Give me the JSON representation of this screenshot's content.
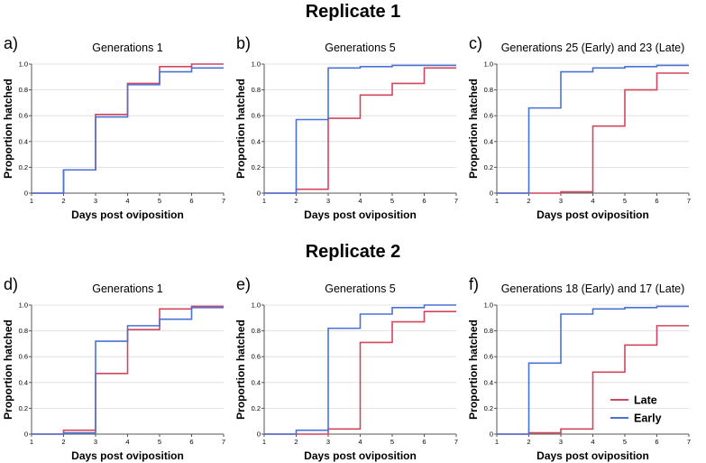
{
  "replicates": [
    {
      "title": "Replicate 1"
    },
    {
      "title": "Replicate 2"
    }
  ],
  "legend": {
    "position": "lower-right of panel f",
    "entries": [
      {
        "name": "Late",
        "color": "#d0475e"
      },
      {
        "name": "Early",
        "color": "#4a72d6"
      }
    ]
  },
  "chart_data": [
    {
      "type": "line",
      "step": true,
      "panel_label": "a)",
      "title": "Generations 1",
      "xlabel": "Days post oviposition",
      "ylabel": "Proportion hatched",
      "xlim": [
        1,
        7
      ],
      "ylim": [
        0,
        1.0
      ],
      "x_ticks": [
        "1",
        "2",
        "3",
        "4",
        "5",
        "6",
        "7"
      ],
      "y_ticks": [
        "0",
        "0.2",
        "0.4",
        "0.6",
        "0.8",
        "1.0"
      ],
      "x": [
        1,
        2,
        3,
        4,
        5,
        6,
        7
      ],
      "series": [
        {
          "name": "Late",
          "color": "#d0475e",
          "values": [
            0,
            0.18,
            0.61,
            0.85,
            0.98,
            1.0,
            1.0
          ]
        },
        {
          "name": "Early",
          "color": "#4a72d6",
          "values": [
            0,
            0.18,
            0.59,
            0.84,
            0.94,
            0.97,
            0.97
          ]
        }
      ]
    },
    {
      "type": "line",
      "step": true,
      "panel_label": "b)",
      "title": "Generations 5",
      "xlabel": "Days post oviposition",
      "ylabel": "Proportion hatched",
      "xlim": [
        1,
        7
      ],
      "ylim": [
        0,
        1.0
      ],
      "x_ticks": [
        "1",
        "2",
        "3",
        "4",
        "5",
        "6",
        "7"
      ],
      "y_ticks": [
        "0",
        "0.2",
        "0.4",
        "0.6",
        "0.8",
        "1.0"
      ],
      "x": [
        1,
        2,
        3,
        4,
        5,
        6,
        7
      ],
      "series": [
        {
          "name": "Late",
          "color": "#d0475e",
          "values": [
            0,
            0.03,
            0.58,
            0.76,
            0.85,
            0.97,
            0.97
          ]
        },
        {
          "name": "Early",
          "color": "#4a72d6",
          "values": [
            0,
            0.57,
            0.97,
            0.98,
            0.99,
            0.99,
            0.99
          ]
        }
      ]
    },
    {
      "type": "line",
      "step": true,
      "panel_label": "c)",
      "title": "Generations 25 (Early) and 23 (Late)",
      "xlabel": "Days post oviposition",
      "ylabel": "Proportion hatched",
      "xlim": [
        1,
        7
      ],
      "ylim": [
        0,
        1.0
      ],
      "x_ticks": [
        "1",
        "2",
        "3",
        "4",
        "5",
        "6",
        "7"
      ],
      "y_ticks": [
        "0",
        "0.2",
        "0.4",
        "0.6",
        "0.8",
        "1.0"
      ],
      "x": [
        1,
        2,
        3,
        4,
        5,
        6,
        7
      ],
      "series": [
        {
          "name": "Late",
          "color": "#d0475e",
          "values": [
            0,
            0,
            0.01,
            0.52,
            0.8,
            0.93,
            0.93
          ]
        },
        {
          "name": "Early",
          "color": "#4a72d6",
          "values": [
            0,
            0.66,
            0.94,
            0.97,
            0.98,
            0.99,
            0.99
          ]
        }
      ]
    },
    {
      "type": "line",
      "step": true,
      "panel_label": "d)",
      "title": "Generations 1",
      "xlabel": "Days post oviposition",
      "ylabel": "Proportion hatched",
      "xlim": [
        1,
        7
      ],
      "ylim": [
        0,
        1.0
      ],
      "x_ticks": [
        "1",
        "2",
        "3",
        "4",
        "5",
        "6",
        "7"
      ],
      "y_ticks": [
        "0",
        "0.2",
        "0.4",
        "0.6",
        "0.8",
        "1.0"
      ],
      "x": [
        1,
        2,
        3,
        4,
        5,
        6,
        7
      ],
      "series": [
        {
          "name": "Late",
          "color": "#d0475e",
          "values": [
            0,
            0.03,
            0.47,
            0.81,
            0.97,
            0.99,
            0.99
          ]
        },
        {
          "name": "Early",
          "color": "#4a72d6",
          "values": [
            0,
            0.01,
            0.72,
            0.84,
            0.89,
            0.98,
            0.98
          ]
        }
      ]
    },
    {
      "type": "line",
      "step": true,
      "panel_label": "e)",
      "title": "Generations 5",
      "xlabel": "Days post oviposition",
      "ylabel": "Proportion hatched",
      "xlim": [
        1,
        7
      ],
      "ylim": [
        0,
        1.0
      ],
      "x_ticks": [
        "1",
        "2",
        "3",
        "4",
        "5",
        "6",
        "7"
      ],
      "y_ticks": [
        "0",
        "0.2",
        "0.4",
        "0.6",
        "0.8",
        "1.0"
      ],
      "x": [
        1,
        2,
        3,
        4,
        5,
        6,
        7
      ],
      "series": [
        {
          "name": "Late",
          "color": "#d0475e",
          "values": [
            0,
            0,
            0.04,
            0.71,
            0.87,
            0.95,
            0.95
          ]
        },
        {
          "name": "Early",
          "color": "#4a72d6",
          "values": [
            0,
            0.03,
            0.82,
            0.93,
            0.98,
            1.0,
            1.0
          ]
        }
      ]
    },
    {
      "type": "line",
      "step": true,
      "panel_label": "f)",
      "title": "Generations 18 (Early) and 17 (Late)",
      "xlabel": "Days post oviposition",
      "ylabel": "Proportion hatched",
      "xlim": [
        1,
        7
      ],
      "ylim": [
        0,
        1.0
      ],
      "x_ticks": [
        "1",
        "2",
        "3",
        "4",
        "5",
        "6",
        "7"
      ],
      "y_ticks": [
        "0",
        "0.2",
        "0.4",
        "0.6",
        "0.8",
        "1.0"
      ],
      "x": [
        1,
        2,
        3,
        4,
        5,
        6,
        7
      ],
      "series": [
        {
          "name": "Late",
          "color": "#d0475e",
          "values": [
            0,
            0.01,
            0.04,
            0.48,
            0.69,
            0.84,
            0.84
          ]
        },
        {
          "name": "Early",
          "color": "#4a72d6",
          "values": [
            0,
            0.55,
            0.93,
            0.97,
            0.98,
            0.99,
            0.99
          ]
        }
      ]
    }
  ]
}
